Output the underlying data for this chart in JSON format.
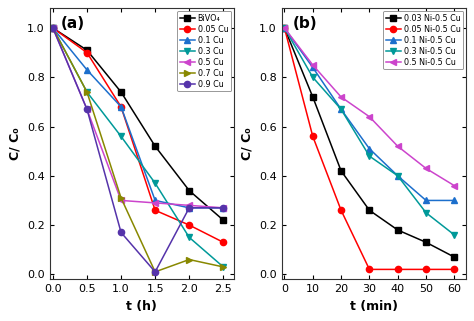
{
  "panel_a": {
    "title": "(a)",
    "xlabel": "t (h)",
    "ylabel": "C/ C₀",
    "xlim": [
      -0.05,
      2.65
    ],
    "ylim": [
      -0.02,
      1.08
    ],
    "xticks": [
      0.0,
      0.5,
      1.0,
      1.5,
      2.0,
      2.5
    ],
    "yticks": [
      0.0,
      0.2,
      0.4,
      0.6,
      0.8,
      1.0
    ],
    "series": [
      {
        "label": "BiVO₄",
        "color": "#000000",
        "marker": "s",
        "x": [
          0.0,
          0.5,
          1.0,
          1.5,
          2.0,
          2.5
        ],
        "y": [
          1.0,
          0.91,
          0.74,
          0.52,
          0.34,
          0.22
        ]
      },
      {
        "label": "0.05 Cu",
        "color": "#ff0000",
        "marker": "o",
        "x": [
          0.0,
          0.5,
          1.0,
          1.5,
          2.0,
          2.5
        ],
        "y": [
          1.0,
          0.9,
          0.68,
          0.26,
          0.2,
          0.13
        ]
      },
      {
        "label": "0.1 Cu",
        "color": "#1c6fcc",
        "marker": "^",
        "x": [
          0.0,
          0.5,
          1.0,
          1.5,
          2.0,
          2.5
        ],
        "y": [
          1.0,
          0.83,
          0.68,
          0.3,
          0.27,
          0.27
        ]
      },
      {
        "label": "0.3 Cu",
        "color": "#009999",
        "marker": "v",
        "x": [
          0.0,
          0.5,
          1.0,
          1.5,
          2.0,
          2.5
        ],
        "y": [
          1.0,
          0.74,
          0.56,
          0.37,
          0.15,
          0.03
        ]
      },
      {
        "label": "0.5 Cu",
        "color": "#cc44cc",
        "marker": "<",
        "x": [
          0.0,
          0.5,
          1.0,
          1.5,
          2.0,
          2.5
        ],
        "y": [
          1.0,
          0.67,
          0.3,
          0.29,
          0.28,
          0.27
        ]
      },
      {
        "label": "0.7 Cu",
        "color": "#888800",
        "marker": ">",
        "x": [
          0.0,
          0.5,
          1.0,
          1.5,
          2.0,
          2.5
        ],
        "y": [
          1.0,
          0.74,
          0.31,
          0.01,
          0.06,
          0.03
        ]
      },
      {
        "label": "0.9 Cu",
        "color": "#5533aa",
        "marker": "o",
        "x": [
          0.0,
          0.5,
          1.0,
          1.5,
          2.0,
          2.5
        ],
        "y": [
          1.0,
          0.67,
          0.17,
          0.01,
          0.27,
          0.27
        ]
      }
    ]
  },
  "panel_b": {
    "title": "(b)",
    "xlabel": "t (min)",
    "ylabel": "C/ C₀",
    "xlim": [
      -1,
      64
    ],
    "ylim": [
      -0.02,
      1.08
    ],
    "xticks": [
      0,
      10,
      20,
      30,
      40,
      50,
      60
    ],
    "yticks": [
      0.0,
      0.2,
      0.4,
      0.6,
      0.8,
      1.0
    ],
    "series": [
      {
        "label": "0.03 Ni-0.5 Cu",
        "color": "#000000",
        "marker": "s",
        "x": [
          0,
          10,
          20,
          30,
          40,
          50,
          60
        ],
        "y": [
          1.0,
          0.72,
          0.42,
          0.26,
          0.18,
          0.13,
          0.07
        ]
      },
      {
        "label": "0.05 Ni-0.5 Cu",
        "color": "#ff0000",
        "marker": "o",
        "x": [
          0,
          10,
          20,
          30,
          40,
          50,
          60
        ],
        "y": [
          1.0,
          0.56,
          0.26,
          0.02,
          0.02,
          0.02,
          0.02
        ]
      },
      {
        "label": "0.1 Ni-0.5 Cu",
        "color": "#1c6fcc",
        "marker": "^",
        "x": [
          0,
          10,
          20,
          30,
          40,
          50,
          60
        ],
        "y": [
          1.0,
          0.84,
          0.67,
          0.51,
          0.4,
          0.3,
          0.3
        ]
      },
      {
        "label": "0.3 Ni-0.5 Cu",
        "color": "#009999",
        "marker": "v",
        "x": [
          0,
          10,
          20,
          30,
          40,
          50,
          60
        ],
        "y": [
          1.0,
          0.8,
          0.67,
          0.48,
          0.4,
          0.25,
          0.16
        ]
      },
      {
        "label": "0.5 Ni-0.5 Cu",
        "color": "#cc44cc",
        "marker": "<",
        "x": [
          0,
          10,
          20,
          30,
          40,
          50,
          60
        ],
        "y": [
          1.0,
          0.85,
          0.72,
          0.64,
          0.52,
          0.43,
          0.36
        ]
      }
    ]
  },
  "bg_color": "#ffffff",
  "plot_bg": "#ffffff"
}
